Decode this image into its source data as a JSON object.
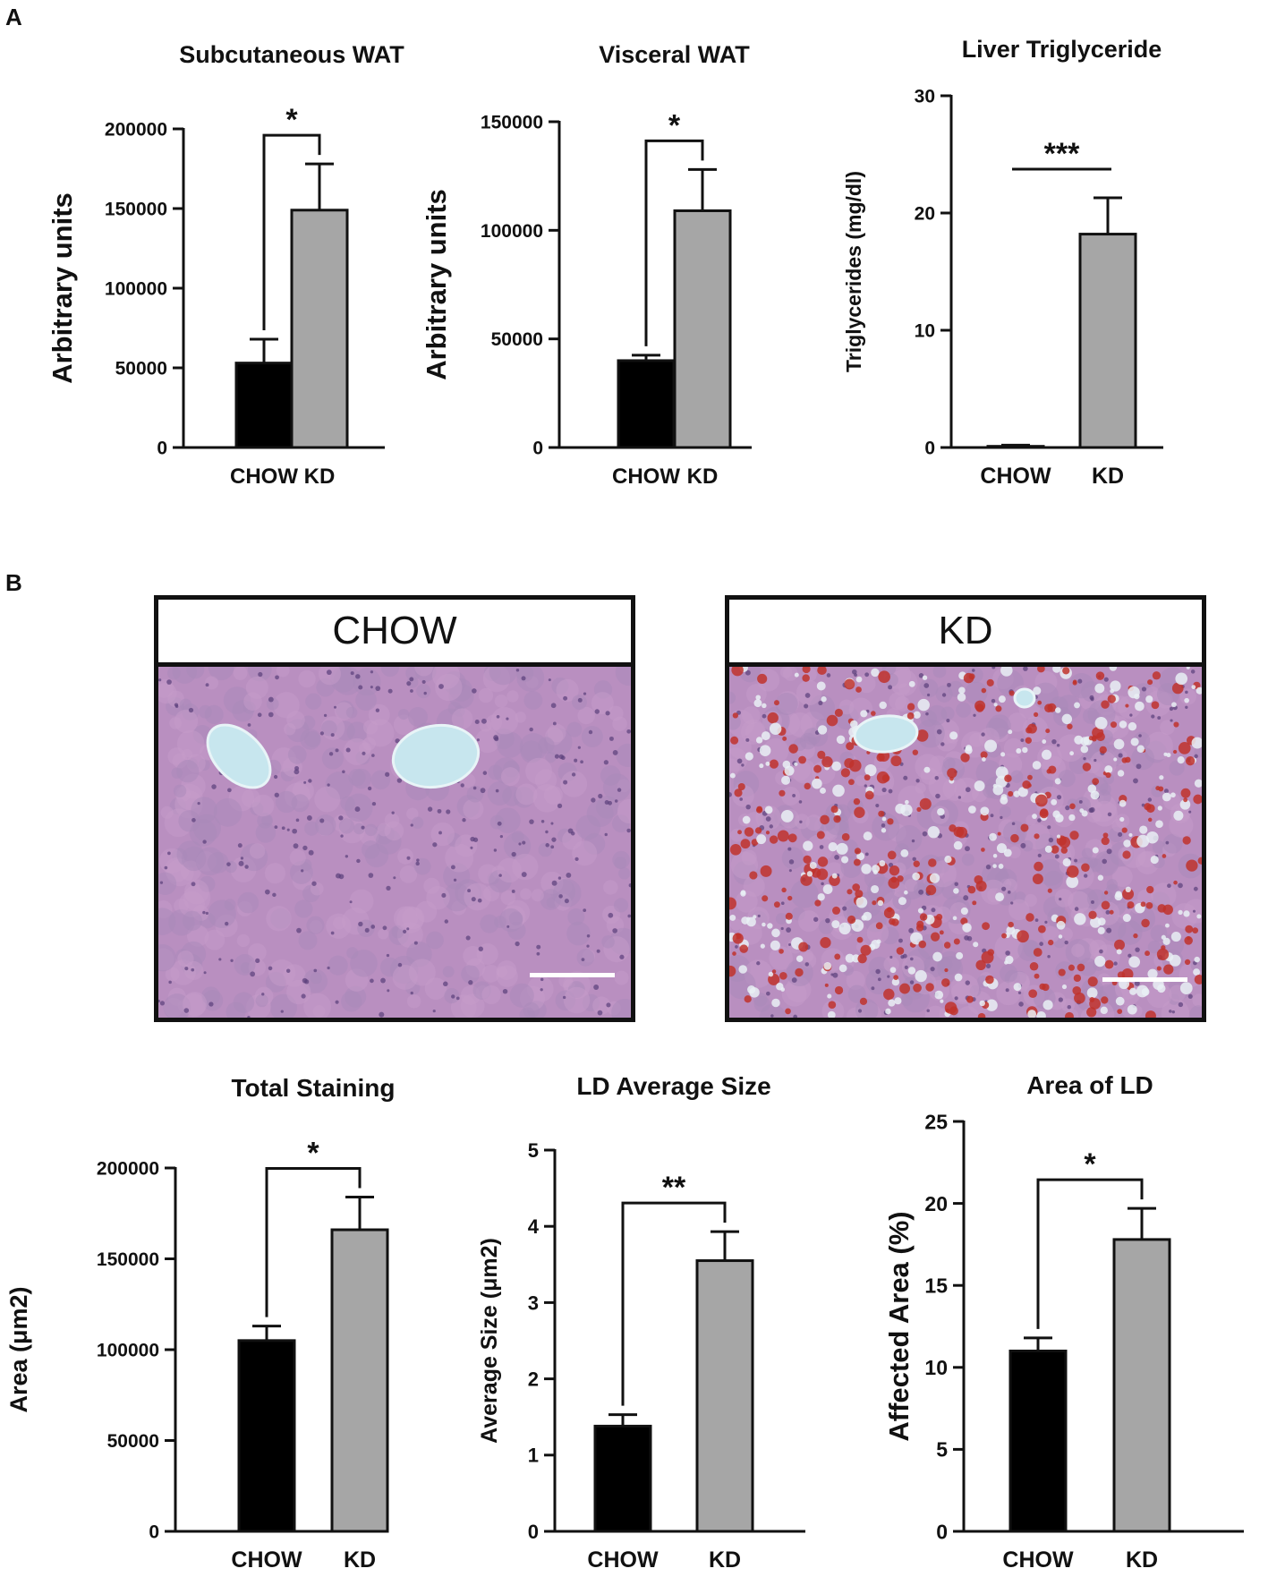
{
  "panels": {
    "a_label": "A",
    "b_label": "B"
  },
  "micrographs": [
    {
      "label": "CHOW",
      "stain": "red-lipid-low"
    },
    {
      "label": "KD",
      "stain": "red-lipid-high"
    }
  ],
  "colors": {
    "chow_bar": "#000000",
    "kd_bar": "#a6a6a6",
    "tissue_base": "#b98fc0",
    "vessel": "#c7e6ee",
    "lipid": "#c0322b"
  },
  "chart_data": [
    {
      "type": "bar",
      "title": "Subcutaneous WAT",
      "ylabel": "Arbitrary units",
      "xlabel": "",
      "categories": [
        "CHOW",
        "KD"
      ],
      "values": [
        53000,
        149000
      ],
      "errors": [
        15000,
        29000
      ],
      "ylim": [
        0,
        200000
      ],
      "yticks": [
        0,
        50000,
        100000,
        150000,
        200000
      ],
      "ytick_labels": [
        "0",
        "50000",
        "100000",
        "150000",
        "200000"
      ],
      "significance": "*",
      "bracket": "bracket"
    },
    {
      "type": "bar",
      "title": "Visceral WAT",
      "ylabel": "Arbitrary units",
      "xlabel": "",
      "categories": [
        "CHOW",
        "KD"
      ],
      "values": [
        40000,
        109000
      ],
      "errors": [
        2500,
        19000
      ],
      "ylim": [
        0,
        150000
      ],
      "yticks": [
        0,
        50000,
        100000,
        150000
      ],
      "ytick_labels": [
        "0",
        "50000",
        "100000",
        "150000"
      ],
      "significance": "*",
      "bracket": "bracket"
    },
    {
      "type": "bar",
      "title": "Liver Triglyceride",
      "ylabel": "Triglycerides (mg/dl)",
      "xlabel": "",
      "categories": [
        "CHOW",
        "KD"
      ],
      "values": [
        0.1,
        18.2
      ],
      "errors": [
        0.1,
        3.1
      ],
      "ylim": [
        0,
        30
      ],
      "yticks": [
        0,
        10,
        20,
        30
      ],
      "ytick_labels": [
        "0",
        "10",
        "20",
        "30"
      ],
      "significance": "***",
      "bracket": "line"
    },
    {
      "type": "bar",
      "title": "Total Staining",
      "ylabel": "Area (μm2)",
      "xlabel": "",
      "categories": [
        "CHOW",
        "KD"
      ],
      "values": [
        105000,
        166000
      ],
      "errors": [
        8000,
        18000
      ],
      "ylim": [
        0,
        200000
      ],
      "yticks": [
        0,
        50000,
        100000,
        150000,
        200000
      ],
      "ytick_labels": [
        "0",
        "50000",
        "100000",
        "150000",
        "200000"
      ],
      "significance": "*",
      "bracket": "bracket"
    },
    {
      "type": "bar",
      "title": "LD Average Size",
      "ylabel": "Average Size (μm2)",
      "xlabel": "",
      "categories": [
        "CHOW",
        "KD"
      ],
      "values": [
        1.38,
        3.55
      ],
      "errors": [
        0.15,
        0.38
      ],
      "ylim": [
        0,
        5
      ],
      "yticks": [
        0,
        1,
        2,
        3,
        4,
        5
      ],
      "ytick_labels": [
        "0",
        "1",
        "2",
        "3",
        "4",
        "5"
      ],
      "significance": "**",
      "bracket": "bracket"
    },
    {
      "type": "bar",
      "title": "Area of LD",
      "ylabel": "Affected Area (%)",
      "xlabel": "",
      "categories": [
        "CHOW",
        "KD"
      ],
      "values": [
        11.0,
        17.8
      ],
      "errors": [
        0.8,
        1.9
      ],
      "ylim": [
        0,
        25
      ],
      "yticks": [
        0,
        5,
        10,
        15,
        20,
        25
      ],
      "ytick_labels": [
        "0",
        "5",
        "10",
        "15",
        "20",
        "25"
      ],
      "significance": "*",
      "bracket": "bracket"
    }
  ]
}
